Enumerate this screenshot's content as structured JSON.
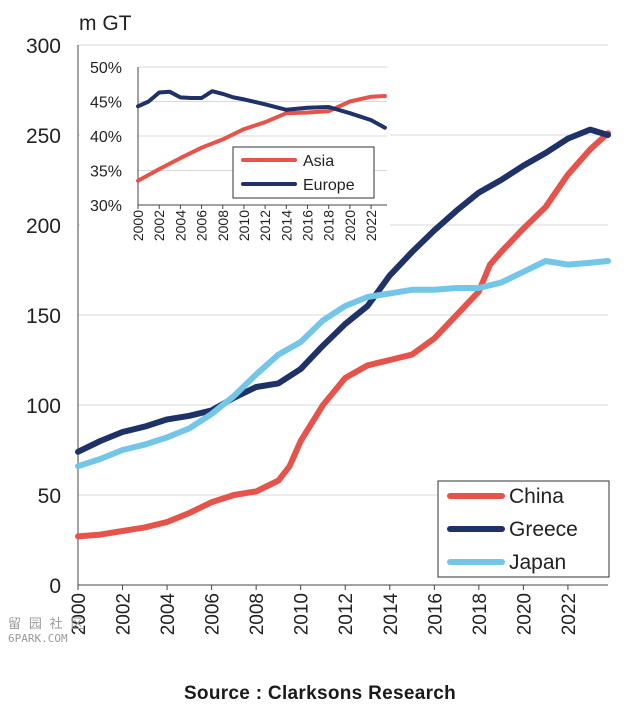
{
  "chart_data": [
    {
      "type": "line",
      "ylabel": "m GT",
      "xlim": [
        2000,
        2023.8
      ],
      "ylim": [
        0,
        300
      ],
      "y_ticks": [
        0,
        50,
        100,
        150,
        200,
        250,
        300
      ],
      "x_ticks": [
        2000,
        2002,
        2004,
        2006,
        2008,
        2010,
        2012,
        2014,
        2016,
        2018,
        2020,
        2022
      ],
      "x_tick_labels": [
        "2000",
        "2002",
        "2004",
        "2006",
        "2008",
        "2010",
        "2012",
        "2014",
        "2016",
        "2018",
        "2020",
        "2022"
      ],
      "y_tick_labels": [
        "0",
        "50",
        "100",
        "150",
        "200",
        "250",
        "300"
      ],
      "grid": true,
      "legend_position": "bottom-right",
      "series": [
        {
          "name": "China",
          "color": "#e5534b",
          "x": [
            2000,
            2001,
            2002,
            2003,
            2004,
            2005,
            2006,
            2007,
            2008,
            2008.5,
            2009,
            2009.5,
            2010,
            2011,
            2012,
            2013,
            2014,
            2015,
            2016,
            2017,
            2018,
            2018.5,
            2019,
            2020,
            2021,
            2022,
            2023,
            2023.8
          ],
          "y": [
            27,
            28,
            30,
            32,
            35,
            40,
            46,
            50,
            52,
            55,
            58,
            66,
            80,
            100,
            115,
            122,
            125,
            128,
            137,
            150,
            163,
            178,
            185,
            198,
            210,
            228,
            242,
            251
          ]
        },
        {
          "name": "Greece",
          "color": "#1f3268",
          "x": [
            2000,
            2001,
            2002,
            2003,
            2004,
            2005,
            2006,
            2007,
            2008,
            2009,
            2010,
            2011,
            2012,
            2013,
            2014,
            2015,
            2016,
            2017,
            2018,
            2019,
            2020,
            2021,
            2022,
            2023,
            2023.8
          ],
          "y": [
            74,
            80,
            85,
            88,
            92,
            94,
            97,
            104,
            110,
            112,
            120,
            133,
            145,
            155,
            172,
            185,
            197,
            208,
            218,
            225,
            233,
            240,
            248,
            253,
            250
          ]
        },
        {
          "name": "Japan",
          "color": "#74c6e8",
          "x": [
            2000,
            2001,
            2002,
            2003,
            2004,
            2005,
            2006,
            2007,
            2008,
            2009,
            2010,
            2011,
            2012,
            2013,
            2014,
            2015,
            2016,
            2017,
            2018,
            2019,
            2020,
            2021,
            2022,
            2023,
            2023.8
          ],
          "y": [
            66,
            70,
            75,
            78,
            82,
            87,
            95,
            105,
            117,
            128,
            135,
            147,
            155,
            160,
            162,
            164,
            164,
            165,
            165,
            168,
            174,
            180,
            178,
            179,
            180
          ]
        }
      ]
    },
    {
      "type": "line",
      "xlim": [
        2000,
        2023.5
      ],
      "ylim": [
        30,
        50
      ],
      "y_ticks": [
        30,
        35,
        40,
        45,
        50
      ],
      "y_tick_labels": [
        "30%",
        "35%",
        "40%",
        "45%",
        "50%"
      ],
      "x_ticks": [
        2000,
        2002,
        2004,
        2006,
        2008,
        2010,
        2012,
        2014,
        2016,
        2018,
        2020,
        2022
      ],
      "x_tick_labels": [
        "2000",
        "2002",
        "2004",
        "2006",
        "2008",
        "2010",
        "2012",
        "2014",
        "2016",
        "2018",
        "2020",
        "2022"
      ],
      "grid": true,
      "legend_position": "bottom-right",
      "series": [
        {
          "name": "Asia",
          "color": "#e5534b",
          "x": [
            2000,
            2002,
            2004,
            2006,
            2008,
            2010,
            2012,
            2014,
            2016,
            2018,
            2020,
            2022,
            2023.3
          ],
          "y": [
            33.5,
            35.2,
            36.8,
            38.3,
            39.5,
            41,
            42,
            43.3,
            43.4,
            43.6,
            45,
            45.7,
            45.8
          ]
        },
        {
          "name": "Europe",
          "color": "#1f3268",
          "x": [
            2000,
            2001,
            2002,
            2003,
            2004,
            2005,
            2006,
            2007,
            2008,
            2009,
            2010,
            2012,
            2014,
            2016,
            2018,
            2020,
            2022,
            2023.3
          ],
          "y": [
            44.3,
            45,
            46.3,
            46.4,
            45.6,
            45.5,
            45.5,
            46.5,
            46.1,
            45.6,
            45.3,
            44.6,
            43.8,
            44.1,
            44.2,
            43.3,
            42.3,
            41.2
          ]
        }
      ]
    }
  ],
  "source": "Source : Clarksons Research",
  "watermark": {
    "line1": "留 园 社 区",
    "line2": "6PARK.COM"
  }
}
